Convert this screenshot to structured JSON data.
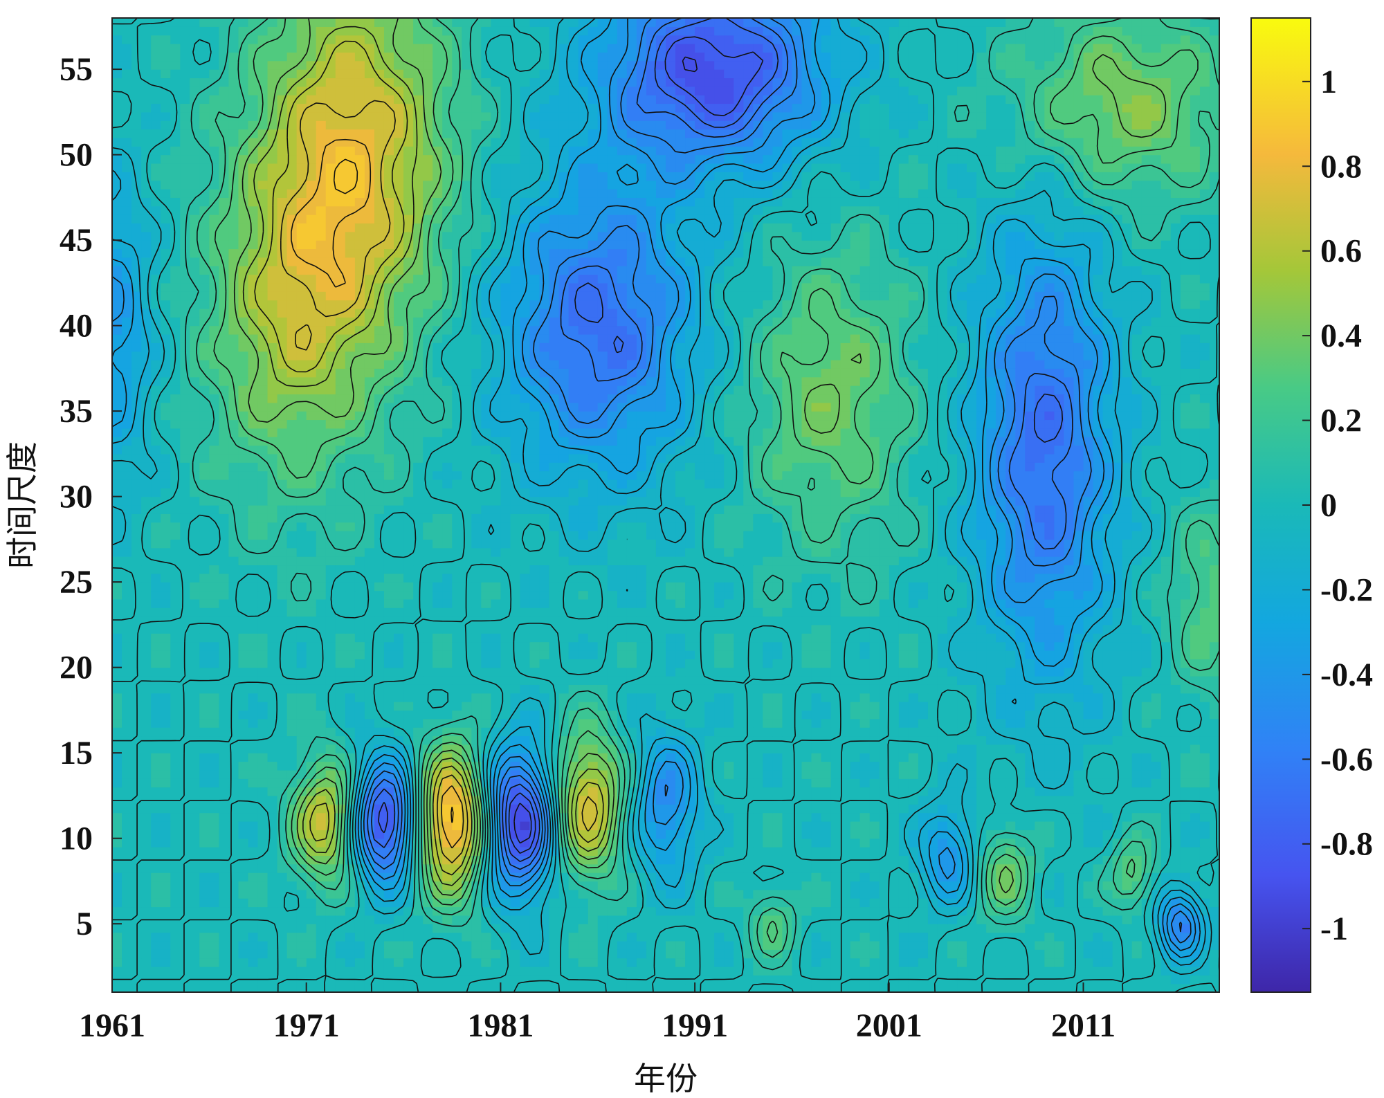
{
  "chart_data": {
    "type": "heatmap",
    "subtype": "filled-contour",
    "title": "",
    "xlabel": "年份",
    "ylabel": "时间尺度",
    "xlim": [
      1961,
      2018
    ],
    "ylim": [
      1,
      58
    ],
    "x_ticks": [
      1961,
      1971,
      1981,
      1991,
      2001,
      2011
    ],
    "y_ticks": [
      5,
      10,
      15,
      20,
      25,
      30,
      35,
      40,
      45,
      50,
      55
    ],
    "colormap": "parula",
    "color_range": [
      -1.15,
      1.15
    ],
    "colorbar_ticks": [
      -1,
      -0.8,
      -0.6,
      -0.4,
      -0.2,
      0,
      0.2,
      0.4,
      0.6,
      0.8,
      1
    ],
    "colorbar_tick_labels": [
      "-1",
      "-0.8",
      "-0.6",
      "-0.4",
      "-0.2",
      "0",
      "0.2",
      "0.4",
      "0.6",
      "0.8",
      "1"
    ],
    "colorbar_position": "right",
    "contour_lines": "black",
    "colors": {
      "low": "#3e26a8",
      "mid": "#1ab2b7",
      "high": "#f9fb0e",
      "contour": "#111111"
    },
    "features": [
      {
        "year": 1973.5,
        "scale": 50,
        "value": 0.75,
        "sx": 3.5,
        "sy": 8
      },
      {
        "year": 1970,
        "scale": 40,
        "value": 0.45,
        "sx": 3,
        "sy": 7
      },
      {
        "year": 1986,
        "scale": 40,
        "value": -0.7,
        "sx": 3.5,
        "sy": 6
      },
      {
        "year": 1992,
        "scale": 55,
        "value": -0.9,
        "sx": 4,
        "sy": 4
      },
      {
        "year": 1998,
        "scale": 36,
        "value": 0.4,
        "sx": 3,
        "sy": 6
      },
      {
        "year": 2009,
        "scale": 33,
        "value": -0.7,
        "sx": 2.5,
        "sy": 9
      },
      {
        "year": 2013,
        "scale": 53,
        "value": 0.45,
        "sx": 4,
        "sy": 4
      },
      {
        "year": 2017.5,
        "scale": 24,
        "value": 0.3,
        "sx": 1.5,
        "sy": 4
      },
      {
        "year": 1961,
        "scale": 40,
        "value": -0.4,
        "sx": 1.5,
        "sy": 6
      },
      {
        "year": 1972,
        "scale": 11,
        "value": 0.7,
        "sx": 1.2,
        "sy": 2.5
      },
      {
        "year": 1975,
        "scale": 11,
        "value": -0.95,
        "sx": 1.2,
        "sy": 2.5
      },
      {
        "year": 1978.5,
        "scale": 11,
        "value": 1.0,
        "sx": 1.3,
        "sy": 3
      },
      {
        "year": 1982,
        "scale": 11,
        "value": -1.0,
        "sx": 1.3,
        "sy": 3
      },
      {
        "year": 1985.5,
        "scale": 12,
        "value": 0.75,
        "sx": 1.3,
        "sy": 3
      },
      {
        "year": 1989.5,
        "scale": 12,
        "value": -0.5,
        "sx": 1.2,
        "sy": 3
      },
      {
        "year": 2004,
        "scale": 9,
        "value": -0.45,
        "sx": 1,
        "sy": 2
      },
      {
        "year": 2007,
        "scale": 8,
        "value": 0.4,
        "sx": 1,
        "sy": 2
      },
      {
        "year": 2016,
        "scale": 5,
        "value": -0.6,
        "sx": 0.8,
        "sy": 1.5
      },
      {
        "year": 2013.5,
        "scale": 8,
        "value": 0.35,
        "sx": 0.8,
        "sy": 1.5
      },
      {
        "year": 1995,
        "scale": 5,
        "value": 0.3,
        "sx": 0.8,
        "sy": 1.5
      }
    ]
  }
}
